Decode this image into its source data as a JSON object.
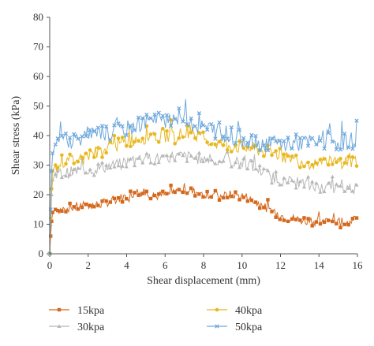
{
  "chart_data": {
    "type": "line",
    "title": "",
    "xlabel": "Shear displacement (mm)",
    "ylabel": "Shear stress (kPa)",
    "xlim": [
      0,
      16
    ],
    "ylim": [
      0,
      80
    ],
    "x_ticks": [
      "0",
      "2",
      "4",
      "6",
      "8",
      "10",
      "12",
      "14",
      "16"
    ],
    "y_ticks": [
      "0",
      "10",
      "20",
      "30",
      "40",
      "50",
      "60",
      "70",
      "80"
    ],
    "grid": false,
    "legend_position": "bottom",
    "series": [
      {
        "name": "15kpa",
        "color": "#D4691E",
        "marker": "square",
        "points": [
          [
            0,
            0
          ],
          [
            0.05,
            6
          ],
          [
            0.1,
            11
          ],
          [
            0.15,
            14
          ],
          [
            0.3,
            15
          ],
          [
            0.5,
            15
          ],
          [
            1,
            15.5
          ],
          [
            1.5,
            16
          ],
          [
            2,
            16.5
          ],
          [
            2.5,
            16.5
          ],
          [
            3,
            17.5
          ],
          [
            3.5,
            18.5
          ],
          [
            4,
            19.5
          ],
          [
            4.5,
            21
          ],
          [
            5,
            20.5
          ],
          [
            5.5,
            19.5
          ],
          [
            6,
            20
          ],
          [
            6.5,
            21
          ],
          [
            7,
            21.5
          ],
          [
            7.5,
            21
          ],
          [
            8,
            20.5
          ],
          [
            8.5,
            20
          ],
          [
            9,
            19.5
          ],
          [
            9.5,
            20
          ],
          [
            10,
            19.5
          ],
          [
            10.5,
            18
          ],
          [
            11,
            16.5
          ],
          [
            11.5,
            14
          ],
          [
            12,
            13
          ],
          [
            12.5,
            12
          ],
          [
            13,
            11.5
          ],
          [
            13.5,
            11
          ],
          [
            14,
            11
          ],
          [
            14.5,
            11
          ],
          [
            15,
            11
          ],
          [
            15.5,
            11
          ],
          [
            16,
            11.5
          ]
        ]
      },
      {
        "name": "30kpa",
        "color": "#B8B8B8",
        "marker": "triangle",
        "points": [
          [
            0,
            0
          ],
          [
            0.05,
            10
          ],
          [
            0.1,
            20
          ],
          [
            0.15,
            25
          ],
          [
            0.3,
            27
          ],
          [
            0.5,
            27
          ],
          [
            1,
            27.5
          ],
          [
            1.5,
            28
          ],
          [
            2,
            28.5
          ],
          [
            2.5,
            29
          ],
          [
            3,
            29.5
          ],
          [
            3.5,
            30
          ],
          [
            4,
            31
          ],
          [
            4.5,
            32
          ],
          [
            5,
            32.5
          ],
          [
            5.5,
            32
          ],
          [
            6,
            32.5
          ],
          [
            6.5,
            33
          ],
          [
            7,
            33
          ],
          [
            7.5,
            32.5
          ],
          [
            8,
            32
          ],
          [
            8.5,
            31.5
          ],
          [
            9,
            31.5
          ],
          [
            9.5,
            31
          ],
          [
            10,
            30.5
          ],
          [
            10.5,
            30
          ],
          [
            11,
            28
          ],
          [
            11.5,
            26
          ],
          [
            12,
            25
          ],
          [
            12.5,
            24.5
          ],
          [
            13,
            24
          ],
          [
            13.5,
            23
          ],
          [
            14,
            22.5
          ],
          [
            14.5,
            22
          ],
          [
            15,
            22
          ],
          [
            15.5,
            22
          ],
          [
            16,
            22.5
          ]
        ]
      },
      {
        "name": "40kpa",
        "color": "#E8B820",
        "marker": "circle",
        "points": [
          [
            0,
            0
          ],
          [
            0.05,
            12
          ],
          [
            0.1,
            22
          ],
          [
            0.15,
            28
          ],
          [
            0.3,
            30
          ],
          [
            0.5,
            31
          ],
          [
            1,
            31.5
          ],
          [
            1.5,
            32
          ],
          [
            2,
            33.5
          ],
          [
            2.5,
            34.5
          ],
          [
            3,
            35.5
          ],
          [
            3.5,
            36.5
          ],
          [
            4,
            38
          ],
          [
            4.5,
            39
          ],
          [
            5,
            39.5
          ],
          [
            5.5,
            40
          ],
          [
            6,
            40
          ],
          [
            6.5,
            40
          ],
          [
            7,
            40.5
          ],
          [
            7.5,
            40
          ],
          [
            8,
            39
          ],
          [
            8.5,
            38
          ],
          [
            9,
            37
          ],
          [
            9.5,
            36.5
          ],
          [
            10,
            36
          ],
          [
            10.5,
            35.5
          ],
          [
            11,
            35
          ],
          [
            11.5,
            34
          ],
          [
            12,
            33.5
          ],
          [
            12.5,
            32.5
          ],
          [
            13,
            31.5
          ],
          [
            13.5,
            31
          ],
          [
            14,
            30.5
          ],
          [
            14.5,
            30.5
          ],
          [
            15,
            31
          ],
          [
            15.5,
            31.5
          ],
          [
            16,
            31.5
          ]
        ]
      },
      {
        "name": "50kpa",
        "color": "#6FA8DC",
        "marker": "x",
        "points": [
          [
            0,
            0
          ],
          [
            0.05,
            15
          ],
          [
            0.1,
            28
          ],
          [
            0.15,
            34
          ],
          [
            0.3,
            37
          ],
          [
            0.5,
            38
          ],
          [
            1,
            38.5
          ],
          [
            1.5,
            39
          ],
          [
            2,
            39.5
          ],
          [
            2.5,
            40
          ],
          [
            3,
            40.5
          ],
          [
            3.5,
            41
          ],
          [
            4,
            42
          ],
          [
            4.5,
            43.5
          ],
          [
            5,
            44.5
          ],
          [
            5.5,
            45
          ],
          [
            6,
            45.5
          ],
          [
            6.5,
            46.5
          ],
          [
            7,
            46
          ],
          [
            7.5,
            44
          ],
          [
            8,
            43
          ],
          [
            8.5,
            42
          ],
          [
            9,
            41
          ],
          [
            9.5,
            40
          ],
          [
            10,
            39
          ],
          [
            10.5,
            38
          ],
          [
            11,
            37.5
          ],
          [
            11.5,
            37
          ],
          [
            12,
            37
          ],
          [
            12.5,
            37.5
          ],
          [
            13,
            37.5
          ],
          [
            13.5,
            37.5
          ],
          [
            14,
            37.5
          ],
          [
            14.5,
            38
          ],
          [
            15,
            38
          ],
          [
            15.5,
            38
          ],
          [
            16,
            38.5
          ]
        ]
      }
    ]
  }
}
